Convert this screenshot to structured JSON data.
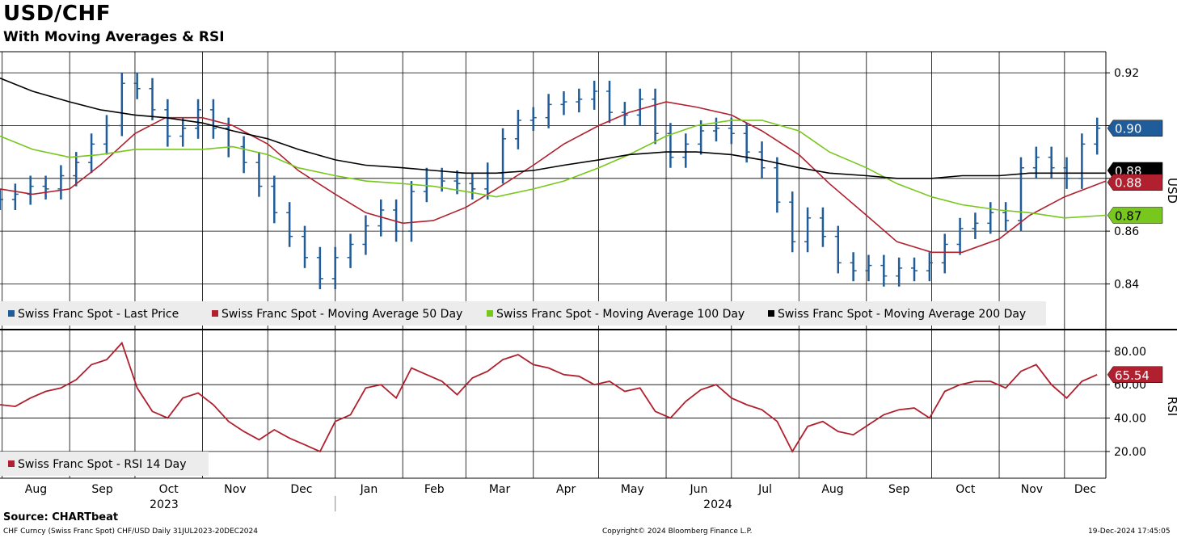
{
  "header": {
    "title": "USD/CHF",
    "subtitle": "With Moving Averages & RSI"
  },
  "footer": {
    "source": "Source: CHARTbeat",
    "left": "CHF Curncy (Swiss Franc Spot) CHF/USD  Daily 31JUL2023-20DEC2024",
    "center": "Copyright© 2024 Bloomberg Finance L.P.",
    "right": "19-Dec-2024 17:45:05"
  },
  "colors": {
    "price": "#1f5c99",
    "ma50": "#b0202e",
    "ma100": "#77c71d",
    "ma200": "#000000",
    "rsi": "#b0202e",
    "grid": "#000000"
  },
  "x_axis": {
    "months": [
      "Aug",
      "Sep",
      "Oct",
      "Nov",
      "Dec",
      "Jan",
      "Feb",
      "Mar",
      "Apr",
      "May",
      "Jun",
      "Jul",
      "Aug",
      "Sep",
      "Oct",
      "Nov",
      "Dec"
    ],
    "years": [
      "2023",
      "2024"
    ]
  },
  "chart_data": [
    {
      "type": "line",
      "ylabel": "USD",
      "ylim": [
        0.823,
        0.928
      ],
      "y_ticks": [
        "0.84",
        "0.86",
        "0.92"
      ],
      "grid": true,
      "legend_position": "bottom-left",
      "x_range": [
        "2023-07-31",
        "2024-12-20"
      ],
      "series": [
        {
          "name": "Swiss Franc Spot - Last Price",
          "style": "bar",
          "current_label": "0.90",
          "x": [
            "2023-07-31",
            "2023-08-07",
            "2023-08-14",
            "2023-08-21",
            "2023-08-28",
            "2023-09-04",
            "2023-09-11",
            "2023-09-18",
            "2023-09-25",
            "2023-10-02",
            "2023-10-09",
            "2023-10-16",
            "2023-10-23",
            "2023-10-30",
            "2023-11-06",
            "2023-11-13",
            "2023-11-20",
            "2023-11-27",
            "2023-12-04",
            "2023-12-11",
            "2023-12-18",
            "2023-12-25",
            "2024-01-01",
            "2024-01-08",
            "2024-01-15",
            "2024-01-22",
            "2024-01-29",
            "2024-02-05",
            "2024-02-12",
            "2024-02-19",
            "2024-02-26",
            "2024-03-04",
            "2024-03-11",
            "2024-03-18",
            "2024-03-25",
            "2024-04-01",
            "2024-04-08",
            "2024-04-15",
            "2024-04-22",
            "2024-04-29",
            "2024-05-06",
            "2024-05-13",
            "2024-05-20",
            "2024-05-27",
            "2024-06-03",
            "2024-06-10",
            "2024-06-17",
            "2024-06-24",
            "2024-07-01",
            "2024-07-08",
            "2024-07-15",
            "2024-07-22",
            "2024-07-29",
            "2024-08-05",
            "2024-08-12",
            "2024-08-19",
            "2024-08-26",
            "2024-09-02",
            "2024-09-09",
            "2024-09-16",
            "2024-09-23",
            "2024-09-30",
            "2024-10-07",
            "2024-10-14",
            "2024-10-21",
            "2024-10-28",
            "2024-11-04",
            "2024-11-11",
            "2024-11-18",
            "2024-11-25",
            "2024-12-02",
            "2024-12-09",
            "2024-12-16"
          ],
          "values": [
            0.872,
            0.874,
            0.877,
            0.876,
            0.881,
            0.886,
            0.893,
            0.9,
            0.916,
            0.914,
            0.906,
            0.896,
            0.899,
            0.906,
            0.899,
            0.892,
            0.886,
            0.877,
            0.867,
            0.858,
            0.85,
            0.842,
            0.85,
            0.855,
            0.862,
            0.868,
            0.86,
            0.875,
            0.88,
            0.879,
            0.878,
            0.876,
            0.882,
            0.895,
            0.902,
            0.903,
            0.908,
            0.909,
            0.91,
            0.913,
            0.905,
            0.904,
            0.91,
            0.897,
            0.888,
            0.893,
            0.898,
            0.899,
            0.897,
            0.89,
            0.884,
            0.871,
            0.856,
            0.865,
            0.858,
            0.848,
            0.845,
            0.847,
            0.843,
            0.846,
            0.845,
            0.848,
            0.855,
            0.861,
            0.863,
            0.867,
            0.864,
            0.884,
            0.888,
            0.884,
            0.88,
            0.893,
            0.899
          ]
        },
        {
          "name": "Swiss Franc Spot - Moving Average 50 Day",
          "style": "line",
          "current_label": "0.88",
          "x": [
            "2023-07-31",
            "2023-08-15",
            "2023-09-01",
            "2023-09-15",
            "2023-10-01",
            "2023-10-15",
            "2023-11-01",
            "2023-11-15",
            "2023-12-01",
            "2023-12-15",
            "2024-01-01",
            "2024-01-15",
            "2024-02-01",
            "2024-02-15",
            "2024-03-01",
            "2024-03-15",
            "2024-04-01",
            "2024-04-15",
            "2024-05-01",
            "2024-05-15",
            "2024-06-01",
            "2024-06-15",
            "2024-07-01",
            "2024-07-15",
            "2024-08-01",
            "2024-08-15",
            "2024-09-01",
            "2024-09-15",
            "2024-10-01",
            "2024-10-15",
            "2024-11-01",
            "2024-11-15",
            "2024-12-01",
            "2024-12-20"
          ],
          "values": [
            0.876,
            0.874,
            0.876,
            0.885,
            0.897,
            0.903,
            0.903,
            0.9,
            0.893,
            0.883,
            0.874,
            0.867,
            0.863,
            0.864,
            0.869,
            0.876,
            0.885,
            0.893,
            0.9,
            0.905,
            0.909,
            0.907,
            0.904,
            0.898,
            0.889,
            0.878,
            0.866,
            0.856,
            0.852,
            0.852,
            0.857,
            0.866,
            0.873,
            0.879
          ]
        },
        {
          "name": "Swiss Franc Spot - Moving Average 100 Day",
          "style": "line",
          "current_label": "0.87",
          "x": [
            "2023-07-31",
            "2023-08-15",
            "2023-09-01",
            "2023-09-15",
            "2023-10-01",
            "2023-10-15",
            "2023-11-01",
            "2023-11-15",
            "2023-12-01",
            "2023-12-15",
            "2024-01-01",
            "2024-01-15",
            "2024-02-01",
            "2024-02-15",
            "2024-03-01",
            "2024-03-15",
            "2024-04-01",
            "2024-04-15",
            "2024-05-01",
            "2024-05-15",
            "2024-06-01",
            "2024-06-15",
            "2024-07-01",
            "2024-07-15",
            "2024-08-01",
            "2024-08-15",
            "2024-09-01",
            "2024-09-15",
            "2024-10-01",
            "2024-10-15",
            "2024-11-01",
            "2024-11-15",
            "2024-12-01",
            "2024-12-20"
          ],
          "values": [
            0.896,
            0.891,
            0.888,
            0.889,
            0.891,
            0.891,
            0.891,
            0.892,
            0.889,
            0.884,
            0.881,
            0.879,
            0.878,
            0.877,
            0.875,
            0.873,
            0.876,
            0.879,
            0.884,
            0.889,
            0.896,
            0.9,
            0.902,
            0.902,
            0.898,
            0.89,
            0.884,
            0.878,
            0.873,
            0.87,
            0.868,
            0.867,
            0.865,
            0.866
          ]
        },
        {
          "name": "Swiss Franc Spot - Moving Average 200 Day",
          "style": "line",
          "current_label": "0.88",
          "x": [
            "2023-07-31",
            "2023-08-15",
            "2023-09-01",
            "2023-09-15",
            "2023-10-01",
            "2023-10-15",
            "2023-11-01",
            "2023-11-15",
            "2023-12-01",
            "2023-12-15",
            "2024-01-01",
            "2024-01-15",
            "2024-02-01",
            "2024-02-15",
            "2024-03-01",
            "2024-03-15",
            "2024-04-01",
            "2024-04-15",
            "2024-05-01",
            "2024-05-15",
            "2024-06-01",
            "2024-06-15",
            "2024-07-01",
            "2024-07-15",
            "2024-08-01",
            "2024-08-15",
            "2024-09-01",
            "2024-09-15",
            "2024-10-01",
            "2024-10-15",
            "2024-11-01",
            "2024-11-15",
            "2024-12-01",
            "2024-12-20"
          ],
          "values": [
            0.918,
            0.913,
            0.909,
            0.906,
            0.904,
            0.903,
            0.901,
            0.898,
            0.895,
            0.891,
            0.887,
            0.885,
            0.884,
            0.883,
            0.882,
            0.882,
            0.883,
            0.885,
            0.887,
            0.889,
            0.89,
            0.89,
            0.889,
            0.887,
            0.884,
            0.882,
            0.881,
            0.88,
            0.88,
            0.881,
            0.881,
            0.882,
            0.882,
            0.882
          ]
        }
      ]
    },
    {
      "type": "line",
      "ylabel": "RSI",
      "ylim": [
        4,
        92
      ],
      "y_ticks": [
        "20.00",
        "40.00",
        "60.00",
        "80.00"
      ],
      "grid": true,
      "legend_position": "bottom-left",
      "x_range": [
        "2023-07-31",
        "2024-12-20"
      ],
      "series": [
        {
          "name": "Swiss Franc Spot - RSI 14 Day",
          "style": "line",
          "current_label": "65.54",
          "x": [
            "2023-07-31",
            "2023-08-07",
            "2023-08-14",
            "2023-08-21",
            "2023-08-28",
            "2023-09-04",
            "2023-09-11",
            "2023-09-18",
            "2023-09-25",
            "2023-10-02",
            "2023-10-09",
            "2023-10-16",
            "2023-10-23",
            "2023-10-30",
            "2023-11-06",
            "2023-11-13",
            "2023-11-20",
            "2023-11-27",
            "2023-12-04",
            "2023-12-11",
            "2023-12-18",
            "2023-12-25",
            "2024-01-01",
            "2024-01-08",
            "2024-01-15",
            "2024-01-22",
            "2024-01-29",
            "2024-02-05",
            "2024-02-12",
            "2024-02-19",
            "2024-02-26",
            "2024-03-04",
            "2024-03-11",
            "2024-03-18",
            "2024-03-25",
            "2024-04-01",
            "2024-04-08",
            "2024-04-15",
            "2024-04-22",
            "2024-04-29",
            "2024-05-06",
            "2024-05-13",
            "2024-05-20",
            "2024-05-27",
            "2024-06-03",
            "2024-06-10",
            "2024-06-17",
            "2024-06-24",
            "2024-07-01",
            "2024-07-08",
            "2024-07-15",
            "2024-07-22",
            "2024-07-29",
            "2024-08-05",
            "2024-08-12",
            "2024-08-19",
            "2024-08-26",
            "2024-09-02",
            "2024-09-09",
            "2024-09-16",
            "2024-09-23",
            "2024-09-30",
            "2024-10-07",
            "2024-10-14",
            "2024-10-21",
            "2024-10-28",
            "2024-11-04",
            "2024-11-11",
            "2024-11-18",
            "2024-11-25",
            "2024-12-02",
            "2024-12-09",
            "2024-12-16"
          ],
          "values": [
            48,
            47,
            52,
            56,
            58,
            63,
            72,
            75,
            85,
            58,
            44,
            40,
            52,
            55,
            48,
            38,
            32,
            27,
            33,
            28,
            24,
            20,
            38,
            42,
            58,
            60,
            52,
            70,
            66,
            62,
            54,
            64,
            68,
            75,
            78,
            72,
            70,
            66,
            65,
            60,
            62,
            56,
            58,
            44,
            40,
            50,
            57,
            60,
            52,
            48,
            45,
            38,
            20,
            35,
            38,
            32,
            30,
            36,
            42,
            45,
            46,
            40,
            56,
            60,
            62,
            62,
            58,
            68,
            72,
            60,
            52,
            62,
            66
          ]
        }
      ]
    }
  ]
}
